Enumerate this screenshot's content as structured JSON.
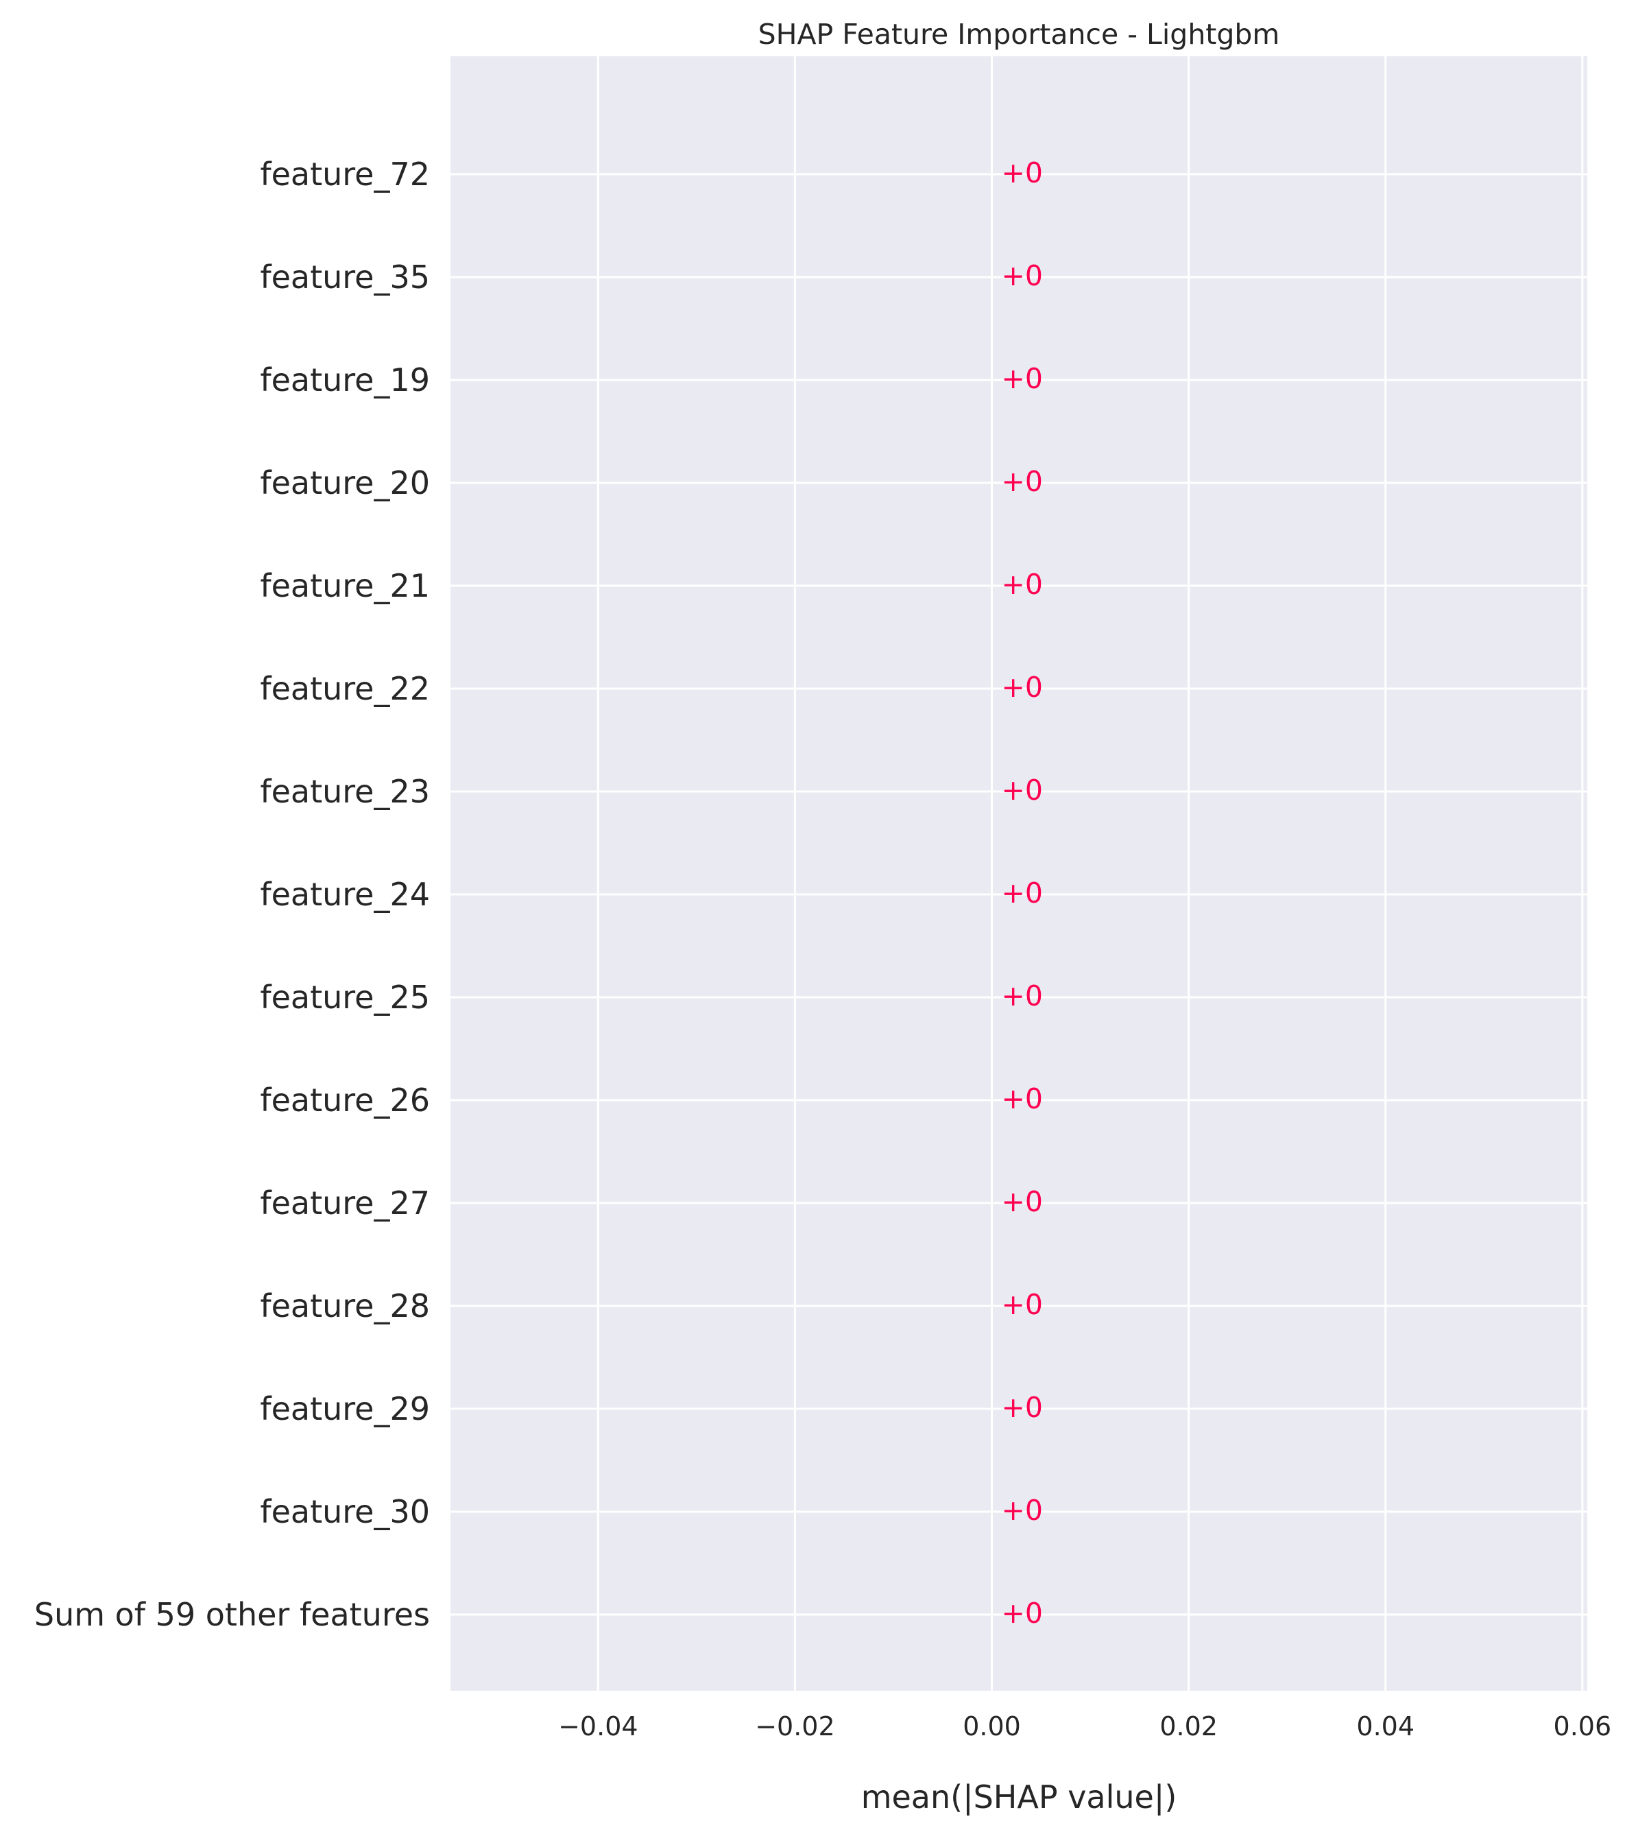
{
  "colors": {
    "plot_background": "#eaeaf2",
    "grid": "#ffffff",
    "text": "#262626",
    "positive": "#ff0051"
  },
  "chart_data": {
    "type": "bar",
    "orientation": "horizontal",
    "title": "SHAP Feature Importance - Lightgbm",
    "xlabel": "mean(|SHAP value|)",
    "ylabel": "",
    "categories": [
      "feature_72",
      "feature_35",
      "feature_19",
      "feature_20",
      "feature_21",
      "feature_22",
      "feature_23",
      "feature_24",
      "feature_25",
      "feature_26",
      "feature_27",
      "feature_28",
      "feature_29",
      "feature_30",
      "Sum of 59 other features"
    ],
    "values": [
      0,
      0,
      0,
      0,
      0,
      0,
      0,
      0,
      0,
      0,
      0,
      0,
      0,
      0,
      0
    ],
    "value_labels": [
      "+0",
      "+0",
      "+0",
      "+0",
      "+0",
      "+0",
      "+0",
      "+0",
      "+0",
      "+0",
      "+0",
      "+0",
      "+0",
      "+0",
      "+0"
    ],
    "xlim": [
      -0.055,
      0.0605
    ],
    "xticks": [
      -0.04,
      -0.02,
      0.0,
      0.02,
      0.04,
      0.06
    ],
    "xtick_labels": [
      "−0.04",
      "−0.02",
      "0.00",
      "0.02",
      "0.04",
      "0.06"
    ],
    "grid": true,
    "legend": "none"
  }
}
